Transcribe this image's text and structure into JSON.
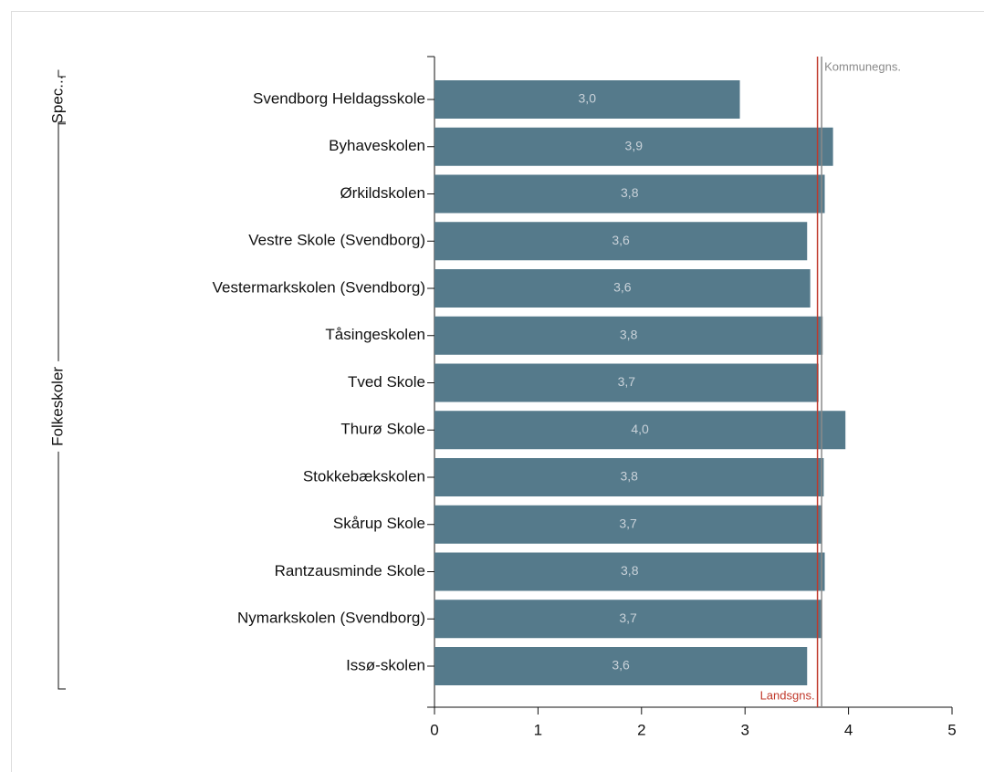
{
  "chart_data": {
    "type": "bar",
    "orientation": "horizontal",
    "color": "#557a8b",
    "xlim": [
      0,
      5
    ],
    "xticks": [
      0,
      1,
      2,
      3,
      4,
      5
    ],
    "groups": [
      {
        "label": "Spec...",
        "categories": [
          "Svendborg Heldagsskole"
        ],
        "values": [
          2.95
        ],
        "value_labels": [
          "3,0"
        ]
      },
      {
        "label": "Folkeskoler",
        "categories": [
          "Byhaveskolen",
          "Ørkildskolen",
          "Vestre Skole (Svendborg)",
          "Vestermarkskolen (Svendborg)",
          "Tåsingeskolen",
          "Tved Skole",
          "Thurø Skole",
          "Stokkebækskolen",
          "Skårup Skole",
          "Rantzausminde Skole",
          "Nymarkskolen (Svendborg)",
          "Issø-skolen"
        ],
        "values": [
          3.85,
          3.77,
          3.6,
          3.63,
          3.75,
          3.71,
          3.97,
          3.76,
          3.74,
          3.77,
          3.74,
          3.6
        ],
        "value_labels": [
          "3,9",
          "3,8",
          "3,6",
          "3,6",
          "3,8",
          "3,7",
          "4,0",
          "3,8",
          "3,7",
          "3,8",
          "3,7",
          "3,6"
        ]
      }
    ],
    "reference_lines": [
      {
        "label": "Landsgns.",
        "value": 3.7,
        "color": "#c0392b"
      },
      {
        "label": "Kommunegns.",
        "value": 3.74,
        "color": "#8a8a8a"
      }
    ]
  }
}
